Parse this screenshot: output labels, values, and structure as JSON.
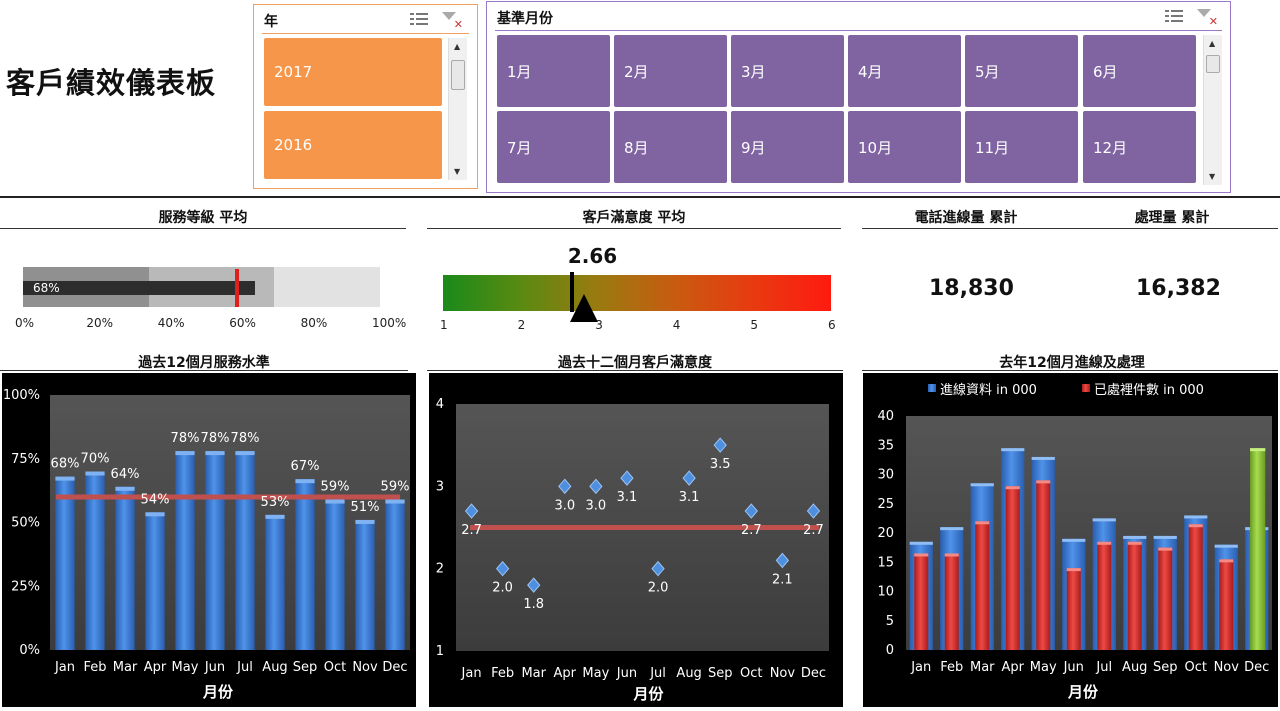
{
  "page_title": "客戶績效儀表板",
  "year_slicer": {
    "header": "年",
    "items": [
      "2017",
      "2016"
    ]
  },
  "month_slicer": {
    "header": "基準月份",
    "items": [
      "1月",
      "2月",
      "3月",
      "4月",
      "5月",
      "6月",
      "7月",
      "8月",
      "9月",
      "10月",
      "11月",
      "12月"
    ]
  },
  "service_level": {
    "title": "服務等級 平均",
    "value_label": "68%",
    "value": 0.68,
    "target": 0.6,
    "bands": [
      0.35,
      0.7,
      1.0
    ],
    "ticks": [
      "0%",
      "20%",
      "40%",
      "60%",
      "80%",
      "100%"
    ]
  },
  "satisfaction": {
    "title": "客戶滿意度 平均",
    "value_label": "2.66",
    "value": 2.66,
    "ticks": [
      "1",
      "2",
      "3",
      "4",
      "5",
      "6"
    ],
    "min": 1,
    "max": 6
  },
  "calls": {
    "title": "電話進線量 累計",
    "value": "18,830"
  },
  "handled": {
    "title": "處理量 累計",
    "value": "16,382"
  },
  "colors": {
    "year_tile": "#f5964a",
    "month_tile": "#8064a2",
    "bar_blue": "#3a7dd8",
    "bar_red": "#d8302c",
    "bar_green": "#8cc63a",
    "avg_line": "#c0504d",
    "plot_bg": "#4a4a4a"
  },
  "chart_data": [
    {
      "type": "bar",
      "title": "過去12個月服務水準",
      "xlabel": "月份",
      "categories": [
        "Jan",
        "Feb",
        "Mar",
        "Apr",
        "May",
        "Jun",
        "Jul",
        "Aug",
        "Sep",
        "Oct",
        "Nov",
        "Dec"
      ],
      "values": [
        68,
        70,
        64,
        54,
        78,
        78,
        78,
        53,
        67,
        59,
        51,
        59
      ],
      "data_labels": [
        "68%",
        "70%",
        "64%",
        "54%",
        "78%",
        "78%",
        "78%",
        "53%",
        "67%",
        "59%",
        "51%",
        "59%"
      ],
      "average_line": 60,
      "ylim": [
        0,
        100
      ],
      "yticks": [
        "0%",
        "25%",
        "50%",
        "75%",
        "100%"
      ]
    },
    {
      "type": "scatter",
      "title": "過去十二個月客戶滿意度",
      "xlabel": "月份",
      "categories": [
        "Jan",
        "Feb",
        "Mar",
        "Apr",
        "May",
        "Jun",
        "Jul",
        "Aug",
        "Sep",
        "Oct",
        "Nov",
        "Dec"
      ],
      "values": [
        2.7,
        2.0,
        1.8,
        3.0,
        3.0,
        3.1,
        2.0,
        3.1,
        3.5,
        2.7,
        2.1,
        2.7
      ],
      "data_labels": [
        "2.7",
        "2.0",
        "1.8",
        "3.0",
        "3.0",
        "3.1",
        "2.0",
        "3.1",
        "3.5",
        "2.7",
        "2.1",
        "2.7"
      ],
      "average_line": 2.5,
      "ylim": [
        1,
        4
      ],
      "yticks": [
        "1",
        "2",
        "3",
        "4"
      ]
    },
    {
      "type": "bar",
      "title": "去年12個月進線及處理",
      "xlabel": "月份",
      "categories": [
        "Jan",
        "Feb",
        "Mar",
        "Apr",
        "May",
        "Jun",
        "Jul",
        "Aug",
        "Sep",
        "Oct",
        "Nov",
        "Dec"
      ],
      "series": [
        {
          "name": "進線資料 in 000",
          "values": [
            18.5,
            21,
            28.5,
            34.5,
            33,
            19,
            22.5,
            19.5,
            19.5,
            23,
            18,
            21
          ]
        },
        {
          "name": "已處裡件數 in 000",
          "values": [
            16.5,
            16.5,
            22,
            28,
            29,
            14,
            18.5,
            18.5,
            17.5,
            21.5,
            15.5,
            34.5
          ]
        }
      ],
      "ylim": [
        0,
        40
      ],
      "yticks": [
        "0",
        "5",
        "10",
        "15",
        "20",
        "25",
        "30",
        "35",
        "40"
      ]
    }
  ]
}
